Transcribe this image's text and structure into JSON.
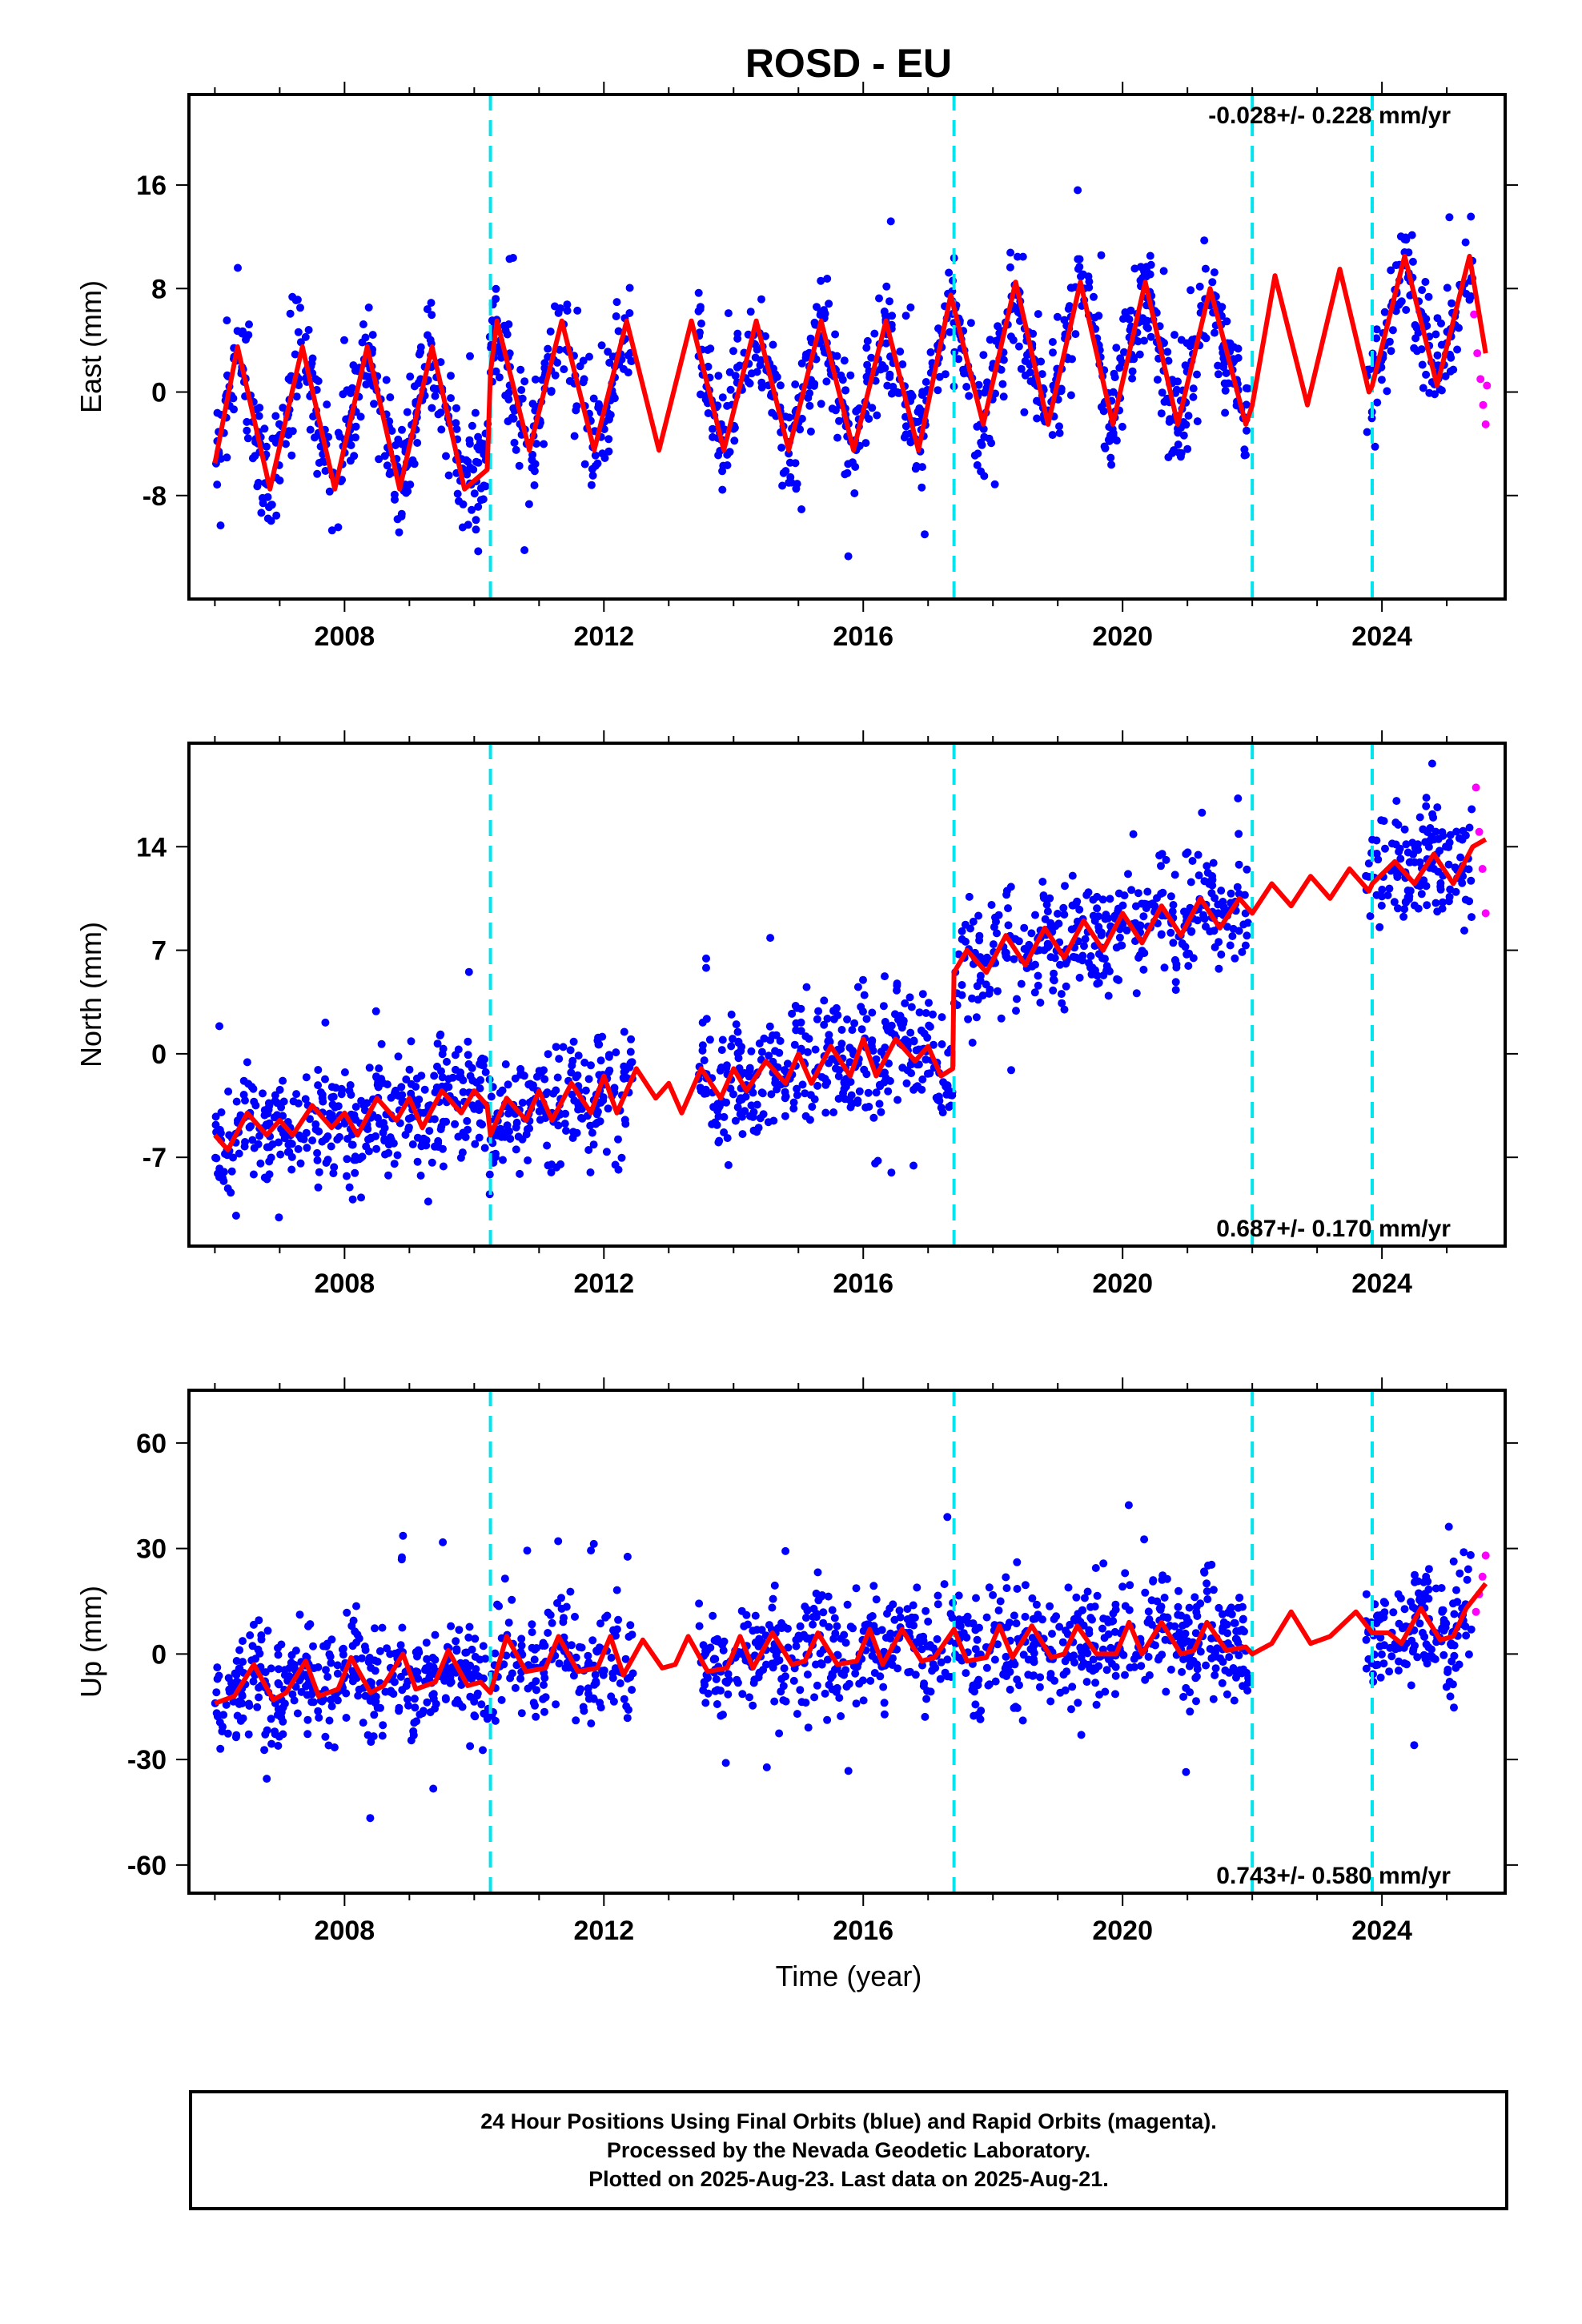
{
  "title": "ROSD - EU",
  "colors": {
    "final": "#0000ff",
    "rapid": "#ff00ff",
    "model": "#ff0000",
    "steps": "#00e5ee"
  },
  "x_axis": {
    "label": "Time (year)",
    "ticks": [
      "2008",
      "2012",
      "2016",
      "2020",
      "2024"
    ],
    "range": [
      2005.6,
      2025.9
    ]
  },
  "steps": [
    2010.25,
    2017.4,
    2022.0,
    2023.85
  ],
  "chart_data": [
    {
      "type": "scatter",
      "ylabel": "East (mm)",
      "yticks": [
        "16",
        "8",
        "0",
        "-8"
      ],
      "ylim": [
        -16,
        23
      ],
      "rate_label": "-0.028+/- 0.228 mm/yr",
      "rate_position": "top-right",
      "series": [
        {
          "name": "model",
          "x": [
            2006.0,
            2006.35,
            2006.85,
            2007.35,
            2007.85,
            2008.35,
            2008.85,
            2009.35,
            2009.85,
            2010.2,
            2010.25,
            2010.35,
            2010.85,
            2011.35,
            2011.85,
            2012.35,
            2012.85,
            2013.35,
            2013.85,
            2014.35,
            2014.85,
            2015.35,
            2015.85,
            2016.35,
            2016.85,
            2017.35,
            2017.85,
            2018.35,
            2018.85,
            2019.35,
            2019.85,
            2020.35,
            2020.85,
            2021.35,
            2021.9,
            2022.0,
            2022.35,
            2022.85,
            2023.35,
            2023.8,
            2023.85,
            2024.35,
            2024.85,
            2025.35,
            2025.6
          ],
          "y": [
            -5.5,
            3.5,
            -7.5,
            3.5,
            -7.5,
            3.5,
            -7.5,
            3.5,
            -7.5,
            -6.0,
            1.5,
            5.5,
            -4.5,
            5.5,
            -4.5,
            5.5,
            -4.5,
            5.5,
            -4.5,
            5.5,
            -4.5,
            5.5,
            -4.5,
            5.5,
            -4.5,
            7.5,
            -2.5,
            8.5,
            -2.5,
            8.5,
            -2.5,
            8.5,
            -2.5,
            8.0,
            -2.5,
            -1.0,
            9.0,
            -1.0,
            9.5,
            0.0,
            0.5,
            10.5,
            0.5,
            10.5,
            3.0
          ]
        },
        {
          "name": "rapid",
          "x": [
            2025.42,
            2025.47,
            2025.52,
            2025.56,
            2025.6,
            2025.62
          ],
          "y": [
            6.0,
            3.0,
            1.0,
            -1.0,
            -2.5,
            0.5
          ]
        }
      ]
    },
    {
      "type": "scatter",
      "ylabel": "North (mm)",
      "yticks": [
        "14",
        "7",
        "0",
        "-7"
      ],
      "ylim": [
        -13,
        21
      ],
      "rate_label": "0.687+/- 0.170 mm/yr",
      "rate_position": "bottom-right",
      "series": [
        {
          "name": "model",
          "x": [
            2006.0,
            2006.2,
            2006.5,
            2006.8,
            2007.0,
            2007.2,
            2007.5,
            2007.8,
            2008.0,
            2008.2,
            2008.5,
            2008.8,
            2009.0,
            2009.2,
            2009.5,
            2009.8,
            2010.0,
            2010.2,
            2010.25,
            2010.5,
            2010.8,
            2011.0,
            2011.2,
            2011.5,
            2011.8,
            2012.0,
            2012.2,
            2012.5,
            2012.8,
            2013.0,
            2013.2,
            2013.5,
            2013.8,
            2014.0,
            2014.2,
            2014.5,
            2014.8,
            2015.0,
            2015.2,
            2015.5,
            2015.8,
            2016.0,
            2016.2,
            2016.5,
            2016.8,
            2017.0,
            2017.2,
            2017.38,
            2017.4,
            2017.6,
            2017.9,
            2018.2,
            2018.5,
            2018.8,
            2019.1,
            2019.4,
            2019.7,
            2020.0,
            2020.3,
            2020.6,
            2020.9,
            2021.2,
            2021.5,
            2021.8,
            2022.0,
            2022.3,
            2022.6,
            2022.9,
            2023.2,
            2023.5,
            2023.8,
            2023.85,
            2024.2,
            2024.5,
            2024.8,
            2025.1,
            2025.4,
            2025.6
          ],
          "y": [
            -5.5,
            -6.5,
            -4.0,
            -5.5,
            -4.5,
            -5.5,
            -3.5,
            -5.0,
            -4.0,
            -5.5,
            -3.0,
            -4.5,
            -3.0,
            -5.0,
            -2.5,
            -4.0,
            -2.5,
            -3.5,
            -5.5,
            -3.0,
            -4.5,
            -2.5,
            -4.5,
            -2.0,
            -4.0,
            -1.5,
            -4.0,
            -1.0,
            -3.0,
            -2.0,
            -4.0,
            -1.0,
            -3.0,
            -1.0,
            -2.5,
            -0.5,
            -2.0,
            0.0,
            -2.0,
            0.5,
            -1.5,
            1.0,
            -1.5,
            1.0,
            -0.5,
            0.5,
            -1.5,
            -1.0,
            5.5,
            7.0,
            5.5,
            8.0,
            6.0,
            8.5,
            6.5,
            9.0,
            7.0,
            9.5,
            7.5,
            10.0,
            8.0,
            10.5,
            8.5,
            10.5,
            9.5,
            11.5,
            10.0,
            12.0,
            10.5,
            12.5,
            11.0,
            11.5,
            13.0,
            11.5,
            13.5,
            11.5,
            14.0,
            14.5
          ]
        },
        {
          "name": "rapid",
          "x": [
            2025.45,
            2025.5,
            2025.55,
            2025.6
          ],
          "y": [
            18.0,
            15.0,
            12.5,
            9.5
          ]
        }
      ]
    },
    {
      "type": "scatter",
      "ylabel": "Up (mm)",
      "xlabel": "Time (year)",
      "yticks": [
        "60",
        "30",
        "0",
        "-30",
        "-60"
      ],
      "ylim": [
        -68,
        75
      ],
      "rate_label": "0.743+/- 0.580 mm/yr",
      "rate_position": "bottom-right",
      "series": [
        {
          "name": "model",
          "x": [
            2006.0,
            2006.3,
            2006.6,
            2006.9,
            2007.1,
            2007.4,
            2007.6,
            2007.9,
            2008.1,
            2008.4,
            2008.6,
            2008.9,
            2009.1,
            2009.4,
            2009.6,
            2009.9,
            2010.1,
            2010.25,
            2010.5,
            2010.8,
            2011.1,
            2011.3,
            2011.6,
            2011.9,
            2012.1,
            2012.3,
            2012.6,
            2012.9,
            2013.1,
            2013.3,
            2013.6,
            2013.9,
            2014.1,
            2014.3,
            2014.6,
            2014.9,
            2015.1,
            2015.3,
            2015.6,
            2015.9,
            2016.1,
            2016.3,
            2016.6,
            2016.9,
            2017.1,
            2017.4,
            2017.6,
            2017.9,
            2018.1,
            2018.3,
            2018.6,
            2018.9,
            2019.1,
            2019.3,
            2019.6,
            2019.9,
            2020.1,
            2020.3,
            2020.6,
            2020.9,
            2021.1,
            2021.3,
            2021.6,
            2021.9,
            2022.0,
            2022.3,
            2022.6,
            2022.9,
            2023.2,
            2023.6,
            2023.85,
            2024.1,
            2024.3,
            2024.6,
            2024.9,
            2025.1,
            2025.3,
            2025.6
          ],
          "y": [
            -14,
            -12,
            -3,
            -13,
            -11,
            -2,
            -12,
            -10,
            -1,
            -11,
            -9,
            0,
            -10,
            -8,
            1,
            -9,
            -8,
            -11,
            5,
            -5,
            -4,
            5,
            -5,
            -4,
            5,
            -6,
            4,
            -4,
            -3,
            5,
            -5,
            -4,
            5,
            -4,
            6,
            -3,
            -2,
            6,
            -3,
            -2,
            7,
            -3,
            7,
            -2,
            -1,
            7,
            -2,
            -1,
            8,
            -1,
            8,
            -1,
            0,
            8,
            0,
            0,
            9,
            0,
            9,
            0,
            1,
            9,
            1,
            2,
            0,
            3,
            12,
            3,
            5,
            12,
            6,
            6,
            3,
            13,
            4,
            5,
            13,
            20
          ]
        },
        {
          "name": "rapid",
          "x": [
            2025.45,
            2025.5,
            2025.55,
            2025.6
          ],
          "y": [
            12.0,
            17.0,
            22.0,
            28.0
          ]
        }
      ]
    }
  ],
  "footer": {
    "line1": "24 Hour Positions Using Final Orbits (blue) and Rapid Orbits (magenta).",
    "line2": "Processed by the Nevada Geodetic Laboratory.",
    "line3": "Plotted on 2025-Aug-23. Last data on 2025-Aug-21."
  }
}
